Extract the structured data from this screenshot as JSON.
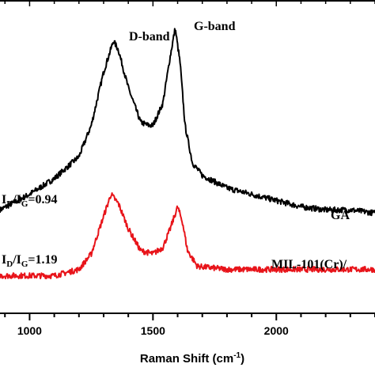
{
  "chart_data": {
    "type": "line",
    "xlabel": "Raman Shift (cm",
    "xlabel_sup": "-1",
    "xlabel_close": ")",
    "xlim": [
      880,
      2400
    ],
    "ylim": [
      0,
      1.0
    ],
    "xticks": [
      1000,
      1500,
      2000
    ],
    "grid": false,
    "annotations": {
      "d_band": "D-band",
      "g_band": "G-band",
      "ratio_ga": {
        "I1": "I",
        "sub1": "D",
        "slash": "/I",
        "sub2": "G",
        "value": "=0.94"
      },
      "ratio_mil": {
        "I1": "I",
        "sub1": "D",
        "slash": "/I",
        "sub2": "G",
        "value": "=1.19"
      }
    },
    "series": [
      {
        "name": "GA",
        "color": "#000000",
        "x": [
          880,
          1000,
          1100,
          1200,
          1250,
          1300,
          1340,
          1360,
          1400,
          1450,
          1480,
          1500,
          1540,
          1570,
          1590,
          1610,
          1630,
          1660,
          1700,
          1800,
          1900,
          2000,
          2100,
          2200,
          2300,
          2400
        ],
        "y": [
          0.33,
          0.38,
          0.43,
          0.5,
          0.6,
          0.77,
          0.87,
          0.84,
          0.72,
          0.61,
          0.6,
          0.6,
          0.67,
          0.82,
          0.91,
          0.8,
          0.6,
          0.48,
          0.44,
          0.4,
          0.38,
          0.36,
          0.34,
          0.33,
          0.33,
          0.32
        ]
      },
      {
        "name": "MIL-101(Cr)/",
        "color": "#e8141a",
        "x": [
          880,
          1000,
          1100,
          1200,
          1250,
          1300,
          1330,
          1360,
          1400,
          1450,
          1500,
          1540,
          1570,
          1600,
          1620,
          1640,
          1680,
          1800,
          1900,
          2000,
          2100,
          2200,
          2300,
          2400
        ],
        "y": [
          0.12,
          0.12,
          0.12,
          0.14,
          0.19,
          0.31,
          0.38,
          0.35,
          0.27,
          0.2,
          0.19,
          0.21,
          0.27,
          0.34,
          0.29,
          0.2,
          0.15,
          0.14,
          0.14,
          0.14,
          0.14,
          0.14,
          0.14,
          0.14
        ]
      }
    ]
  }
}
